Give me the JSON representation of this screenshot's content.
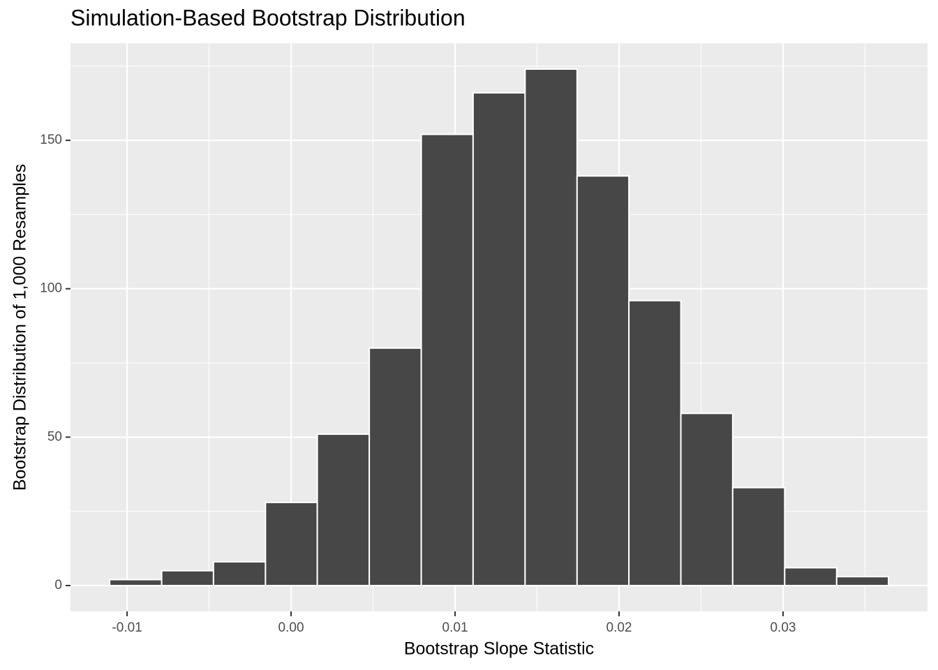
{
  "chart_data": {
    "type": "histogram",
    "title": "Simulation-Based Bootstrap Distribution",
    "x_label": "Bootstrap Slope Statistic",
    "y_label": "Bootstrap Distribution of 1,000 Resamples",
    "bins": [
      -0.01106,
      -0.00789,
      -0.00473,
      -0.00156,
      0.0016,
      0.00477,
      0.00794,
      0.0111,
      0.01427,
      0.01744,
      0.0206,
      0.02377,
      0.02693,
      0.0301,
      0.03327,
      0.03643
    ],
    "values": [
      2,
      5,
      8,
      28,
      51,
      80,
      152,
      166,
      174,
      138,
      96,
      58,
      33,
      6,
      3
    ],
    "color": "#474747",
    "xlim": [
      -0.01345,
      0.03881
    ],
    "ylim": [
      -8.7,
      182.7
    ],
    "xticks": [
      -0.01,
      {
        "value": 0,
        "label": "0.00"
      },
      0.01,
      0.02,
      0.03
    ],
    "yticks": [
      0,
      50,
      100,
      150
    ],
    "xminorticks": [
      -0.005,
      0.005,
      0.015,
      0.025,
      0.035
    ],
    "yminorticks": [
      25,
      75,
      125,
      175
    ],
    "grid": true
  }
}
